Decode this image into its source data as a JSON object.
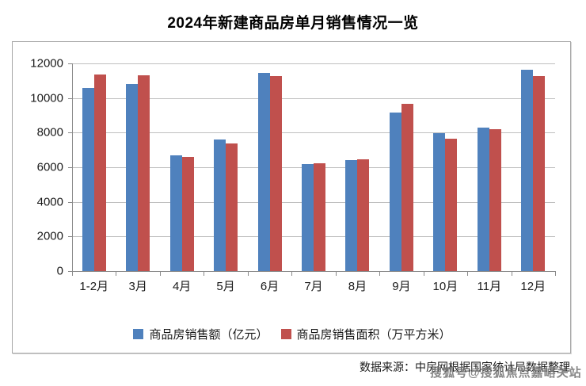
{
  "title": "2024年新建商品房单月销售情况一览",
  "chart_data": {
    "type": "bar",
    "categories": [
      "1-2月",
      "3月",
      "4月",
      "5月",
      "6月",
      "7月",
      "8月",
      "9月",
      "10月",
      "11月",
      "12月"
    ],
    "series": [
      {
        "name": "商品房销售额（亿元）",
        "color": "#4F81BD",
        "values": [
          10566,
          10789,
          6712,
          7598,
          11468,
          6197,
          6393,
          9157,
          7975,
          8270,
          11625
        ]
      },
      {
        "name": "商品房销售面积（万平方米）",
        "color": "#C0504D",
        "values": [
          11369,
          11299,
          6584,
          7390,
          11274,
          6233,
          6453,
          9682,
          7646,
          8188,
          11267
        ]
      }
    ],
    "title": "2024年新建商品房单月销售情况一览",
    "xlabel": "",
    "ylabel": "",
    "ylim": [
      0,
      12000
    ],
    "yticks": [
      0,
      2000,
      4000,
      6000,
      8000,
      10000,
      12000
    ],
    "grid": true,
    "legend_position": "bottom"
  },
  "footer": {
    "source_text": "数据来源：中房网根据国家统计局数据整理",
    "watermark": "搜狐号@搜狐焦点嘉峪关站"
  },
  "colors": {
    "series_sales": "#4F81BD",
    "series_area": "#C0504D",
    "gridline": "#BFBFBF",
    "axis": "#898989",
    "frame_border": "#A6A6A6",
    "watermark_gray": "#777777"
  }
}
